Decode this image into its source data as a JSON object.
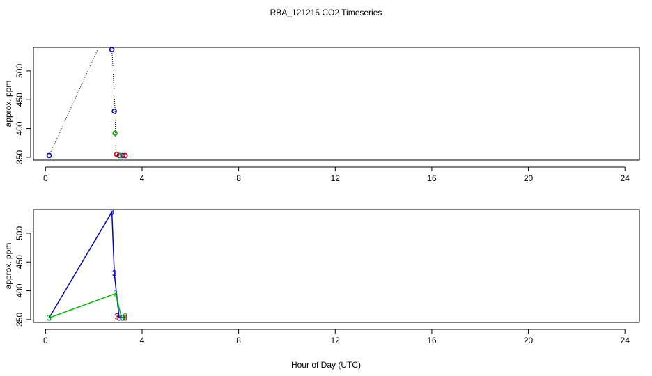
{
  "title": "RBA_121215  CO2 Timeseries",
  "xlabel": "Hour of Day (UTC)",
  "chart_data": [
    {
      "type": "scatter",
      "panel": "top",
      "ylabel": "approx. ppm",
      "xlim": [
        -0.5,
        24.6
      ],
      "ylim": [
        345,
        541
      ],
      "xticks": [
        0,
        4,
        8,
        12,
        16,
        20,
        24
      ],
      "yticks": [
        350,
        400,
        450,
        500
      ],
      "grid": false,
      "connector_color": "#000000",
      "connector": [
        {
          "x": 0.15,
          "y": 353
        },
        {
          "x": 2.2,
          "y": 541
        },
        {
          "x": 2.75,
          "y": 541
        },
        {
          "x": 2.75,
          "y": 537
        },
        {
          "x": 2.85,
          "y": 460
        },
        {
          "x": 2.88,
          "y": 430
        },
        {
          "x": 2.9,
          "y": 392
        },
        {
          "x": 2.92,
          "y": 354
        }
      ],
      "series": [
        {
          "color": "#0000cc",
          "marker": "circle",
          "points": [
            {
              "x": 0.15,
              "y": 353
            },
            {
              "x": 2.75,
              "y": 537
            },
            {
              "x": 2.85,
              "y": 430
            },
            {
              "x": 3.05,
              "y": 353
            },
            {
              "x": 3.2,
              "y": 353
            }
          ]
        },
        {
          "color": "#00bb00",
          "marker": "circle",
          "points": [
            {
              "x": 2.88,
              "y": 392
            },
            {
              "x": 3.1,
              "y": 353
            }
          ]
        },
        {
          "color": "#dd0000",
          "marker": "circle",
          "points": [
            {
              "x": 2.95,
              "y": 355
            },
            {
              "x": 3.3,
              "y": 353
            }
          ]
        }
      ]
    },
    {
      "type": "line",
      "panel": "bottom",
      "ylabel": "approx. ppm",
      "xlim": [
        -0.5,
        24.6
      ],
      "ylim": [
        345,
        541
      ],
      "xticks": [
        0,
        4,
        8,
        12,
        16,
        20,
        24
      ],
      "yticks": [
        350,
        400,
        450,
        500
      ],
      "grid": false,
      "marker_label": "3",
      "series": [
        {
          "color": "#0000cc",
          "points": [
            {
              "x": 0.15,
              "y": 353
            },
            {
              "x": 2.75,
              "y": 537
            },
            {
              "x": 2.85,
              "y": 430
            },
            {
              "x": 3.05,
              "y": 353
            },
            {
              "x": 3.2,
              "y": 353
            }
          ]
        },
        {
          "color": "#00bb00",
          "points": [
            {
              "x": 0.15,
              "y": 353
            },
            {
              "x": 2.9,
              "y": 395
            },
            {
              "x": 3.15,
              "y": 353
            },
            {
              "x": 3.3,
              "y": 355
            }
          ]
        },
        {
          "color": "#dd0000",
          "points": [
            {
              "x": 2.95,
              "y": 355
            },
            {
              "x": 3.3,
              "y": 353
            }
          ]
        }
      ]
    }
  ]
}
